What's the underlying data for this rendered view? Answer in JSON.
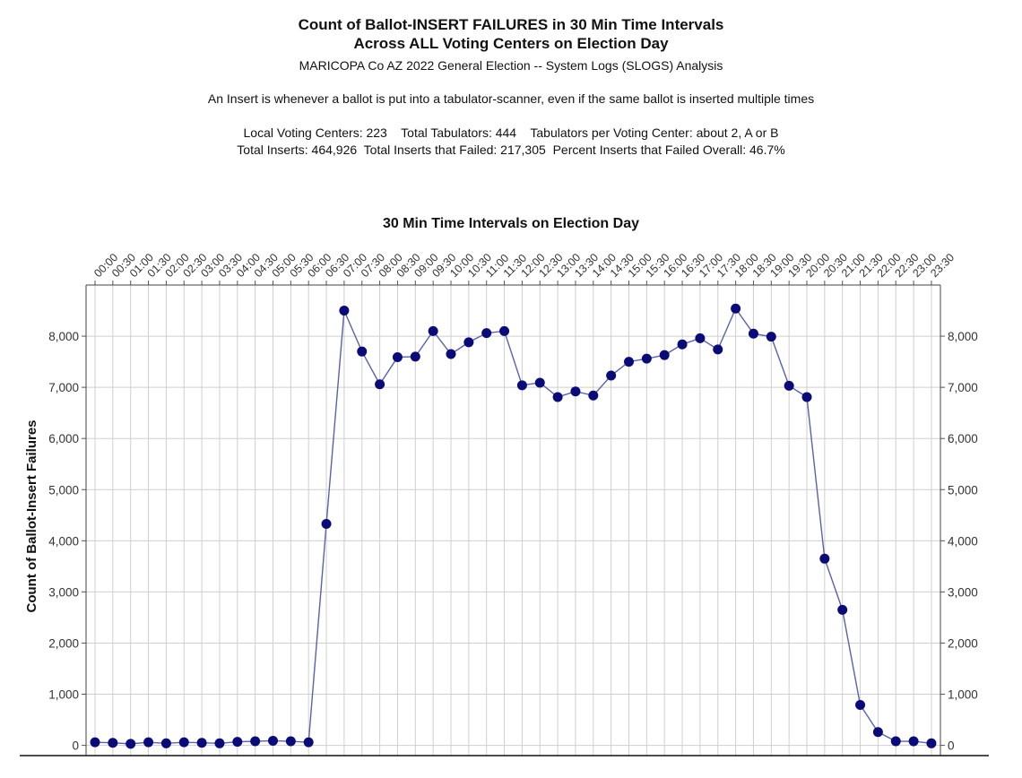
{
  "header": {
    "title_line1": "Count of Ballot-INSERT FAILURES in 30 Min Time Intervals",
    "title_line2": "Across ALL Voting Centers on Election Day",
    "subtitle": "MARICOPA Co AZ 2022 General Election -- System Logs (SLOGS) Analysis",
    "definition": "An Insert is whenever a ballot is put into a tabulator-scanner, even if the same ballot is inserted multiple times",
    "stats_line1": "Local Voting Centers: 223    Total Tabulators: 444    Tabulators per Voting Center: about 2, A or B",
    "stats_line2": "Total Inserts: 464,926  Total Inserts that Failed: 217,305  Percent Inserts that Failed Overall: 46.7%"
  },
  "chart_data": {
    "type": "line",
    "title": "Count of Ballot-INSERT FAILURES in 30 Min Time Intervals",
    "xlabel": "30 Min Time Intervals on Election Day",
    "ylabel": "Count of Ballot-Insert Failures",
    "categories": [
      "00:00",
      "00:30",
      "01:00",
      "01:30",
      "02:00",
      "02:30",
      "03:00",
      "03:30",
      "04:00",
      "04:30",
      "05:00",
      "05:30",
      "06:00",
      "06:30",
      "07:00",
      "07:30",
      "08:00",
      "08:30",
      "09:00",
      "09:30",
      "10:00",
      "10:30",
      "11:00",
      "11:30",
      "12:00",
      "12:30",
      "13:00",
      "13:30",
      "14:00",
      "14:30",
      "15:00",
      "15:30",
      "16:00",
      "16:30",
      "17:00",
      "17:30",
      "18:00",
      "18:30",
      "19:00",
      "19:30",
      "20:00",
      "20:30",
      "21:00",
      "21:30",
      "22:00",
      "22:30",
      "23:00",
      "23:30"
    ],
    "values": [
      60,
      50,
      30,
      60,
      40,
      60,
      50,
      40,
      70,
      80,
      90,
      80,
      60,
      4330,
      8500,
      7700,
      7060,
      7590,
      7600,
      8100,
      7650,
      7880,
      8060,
      8100,
      7040,
      7090,
      6810,
      6920,
      6840,
      7230,
      7500,
      7560,
      7630,
      7840,
      7960,
      7740,
      8540,
      8050,
      7990,
      7030,
      6810,
      3650,
      2650,
      790,
      260,
      80,
      80,
      40
    ],
    "ylim": [
      -200,
      9000
    ],
    "yticks": [
      0,
      1000,
      2000,
      3000,
      4000,
      5000,
      6000,
      7000,
      8000
    ],
    "ytick_labels": [
      "0",
      "1,000",
      "2,000",
      "3,000",
      "4,000",
      "5,000",
      "6,000",
      "7,000",
      "8,000"
    ],
    "x_axis_position": "top",
    "y_axis_labels": "left and right",
    "grid": true,
    "line_color": "#5a62a8",
    "marker_color": "#0b0b78",
    "grid_color": "#cfcfcf"
  }
}
